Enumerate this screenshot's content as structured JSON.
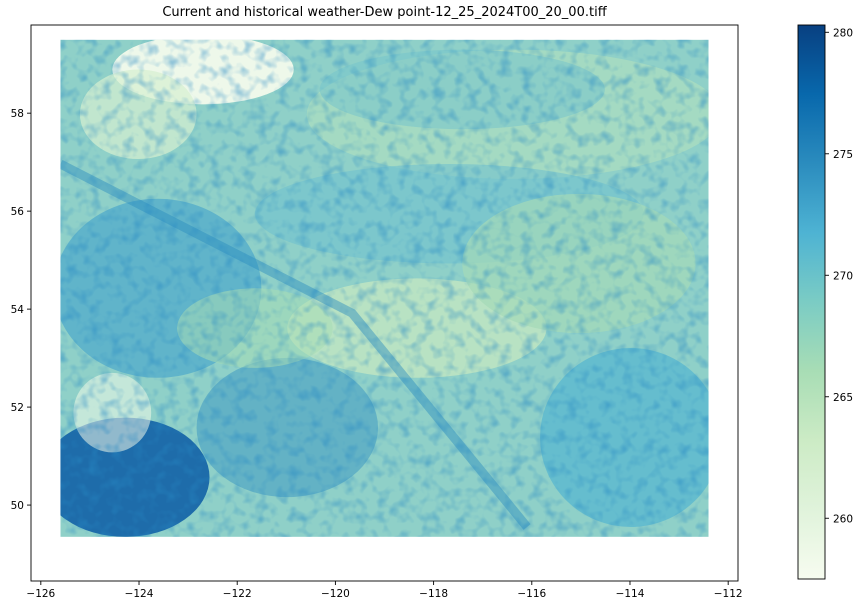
{
  "chart_data": {
    "type": "heatmap",
    "title": "Current and historical weather-Dew point-12_25_2024T00_20_00.tiff",
    "xlabel": "",
    "ylabel": "",
    "xlim": [
      -126.2,
      -111.8
    ],
    "ylim": [
      48.45,
      59.8
    ],
    "xticks": [
      -126,
      -124,
      -122,
      -120,
      -118,
      -116,
      -114,
      -112
    ],
    "xtick_labels": [
      "−126",
      "−124",
      "−122",
      "−120",
      "−118",
      "−116",
      "−114",
      "−112"
    ],
    "yticks": [
      50,
      52,
      54,
      56,
      58
    ],
    "ytick_labels": [
      "50",
      "52",
      "54",
      "56",
      "58"
    ],
    "extent": {
      "lon": [
        -125.6,
        -112.4
      ],
      "lat": [
        49.35,
        59.5
      ]
    },
    "colormap": "GnBu",
    "color_low": "#f7fcf0",
    "color_high": "#084081",
    "colorbar": {
      "vmin": 257.5,
      "vmax": 280.3,
      "ticks": [
        260,
        265,
        270,
        275,
        280
      ],
      "tick_labels": [
        "260",
        "265",
        "270",
        "275",
        "280"
      ]
    },
    "grid": false,
    "legend": "none"
  }
}
